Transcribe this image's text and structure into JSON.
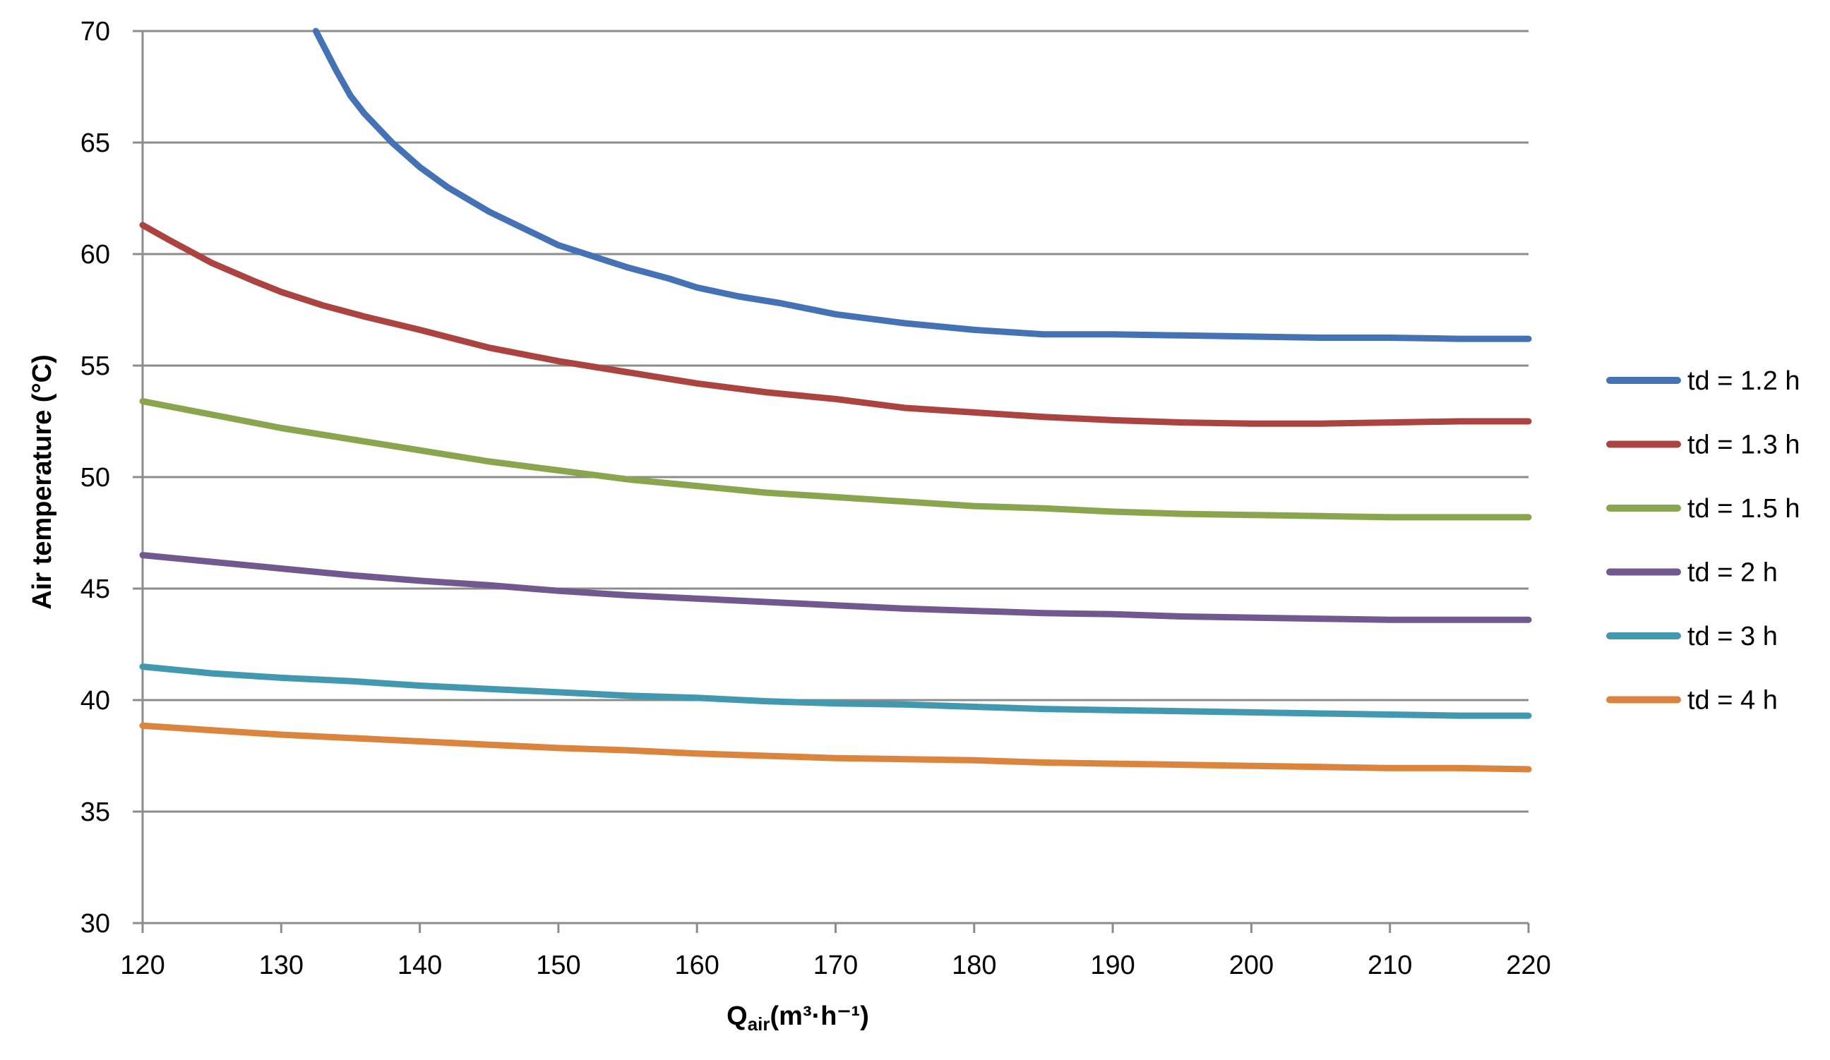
{
  "chart_data": {
    "type": "line",
    "title": "",
    "xlabel_main": "Q",
    "xlabel_sub": "air",
    "xlabel_unit": "(m³·h⁻¹)",
    "ylabel": "Air temperature (°C)",
    "xlim": [
      120,
      220
    ],
    "ylim": [
      30,
      70
    ],
    "xticks": [
      120,
      130,
      140,
      150,
      160,
      170,
      180,
      190,
      200,
      210,
      220
    ],
    "yticks": [
      30,
      35,
      40,
      45,
      50,
      55,
      60,
      65,
      70
    ],
    "grid": true,
    "legend_position": "right",
    "series": [
      {
        "name": "td = 1.2 h",
        "color": "#4572b5",
        "x": [
          132.5,
          133,
          134,
          135,
          136,
          138,
          140,
          142,
          145,
          148,
          150,
          152,
          155,
          158,
          160,
          163,
          166,
          170,
          175,
          180,
          185,
          190,
          195,
          200,
          205,
          210,
          215,
          220
        ],
        "y": [
          70,
          69.4,
          68.2,
          67.1,
          66.3,
          65.0,
          63.9,
          63.0,
          61.9,
          61.0,
          60.4,
          60.0,
          59.4,
          58.9,
          58.5,
          58.1,
          57.8,
          57.3,
          56.9,
          56.6,
          56.4,
          56.4,
          56.35,
          56.3,
          56.25,
          56.25,
          56.2,
          56.2
        ]
      },
      {
        "name": "td = 1.3 h",
        "color": "#ab4441",
        "x": [
          120,
          122,
          125,
          128,
          130,
          133,
          136,
          140,
          145,
          150,
          155,
          160,
          165,
          170,
          175,
          180,
          185,
          190,
          195,
          200,
          205,
          210,
          215,
          220
        ],
        "y": [
          61.3,
          60.6,
          59.6,
          58.8,
          58.3,
          57.7,
          57.2,
          56.6,
          55.8,
          55.2,
          54.7,
          54.2,
          53.8,
          53.5,
          53.1,
          52.9,
          52.7,
          52.55,
          52.45,
          52.4,
          52.4,
          52.45,
          52.5,
          52.5
        ]
      },
      {
        "name": "td = 1.5 h",
        "color": "#89a54e",
        "x": [
          120,
          125,
          130,
          135,
          140,
          145,
          150,
          155,
          160,
          165,
          170,
          175,
          180,
          185,
          190,
          195,
          200,
          205,
          210,
          215,
          220
        ],
        "y": [
          53.4,
          52.8,
          52.2,
          51.7,
          51.2,
          50.7,
          50.3,
          49.9,
          49.6,
          49.3,
          49.1,
          48.9,
          48.7,
          48.6,
          48.45,
          48.35,
          48.3,
          48.25,
          48.2,
          48.2,
          48.2
        ]
      },
      {
        "name": "td = 2 h",
        "color": "#71588f",
        "x": [
          120,
          125,
          130,
          135,
          140,
          145,
          150,
          155,
          160,
          165,
          170,
          175,
          180,
          185,
          190,
          195,
          200,
          205,
          210,
          215,
          220
        ],
        "y": [
          46.5,
          46.2,
          45.9,
          45.6,
          45.35,
          45.15,
          44.9,
          44.7,
          44.55,
          44.4,
          44.25,
          44.1,
          44.0,
          43.9,
          43.85,
          43.75,
          43.7,
          43.65,
          43.6,
          43.6,
          43.6
        ]
      },
      {
        "name": "td = 3 h",
        "color": "#4198af",
        "x": [
          120,
          125,
          130,
          135,
          140,
          145,
          150,
          155,
          160,
          165,
          170,
          175,
          180,
          185,
          190,
          195,
          200,
          205,
          210,
          215,
          220
        ],
        "y": [
          41.5,
          41.2,
          41.0,
          40.85,
          40.65,
          40.5,
          40.35,
          40.2,
          40.1,
          39.95,
          39.85,
          39.8,
          39.7,
          39.6,
          39.55,
          39.5,
          39.45,
          39.4,
          39.35,
          39.3,
          39.3
        ]
      },
      {
        "name": "td = 4 h",
        "color": "#db843d",
        "x": [
          120,
          125,
          130,
          135,
          140,
          145,
          150,
          155,
          160,
          165,
          170,
          175,
          180,
          185,
          190,
          195,
          200,
          205,
          210,
          215,
          220
        ],
        "y": [
          38.85,
          38.65,
          38.45,
          38.3,
          38.15,
          38.0,
          37.85,
          37.75,
          37.6,
          37.5,
          37.4,
          37.35,
          37.3,
          37.2,
          37.15,
          37.1,
          37.05,
          37.0,
          36.95,
          36.95,
          36.9
        ]
      }
    ]
  }
}
